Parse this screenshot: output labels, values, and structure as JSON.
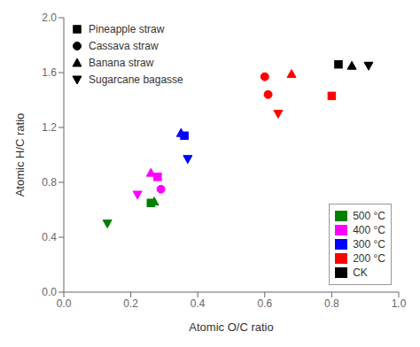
{
  "chart_data": {
    "type": "scatter",
    "xlabel": "Atomic O/C ratio",
    "ylabel": "Atomic H/C ratio",
    "xlim": [
      0.0,
      1.0
    ],
    "ylim": [
      0.0,
      2.0
    ],
    "xticks": [
      {
        "value": 0,
        "label": "0.0"
      },
      0.2,
      0.4,
      0.6,
      0.8,
      {
        "value": 1,
        "label": "1.0"
      }
    ],
    "yticks": [
      {
        "value": 0,
        "label": "0.0"
      },
      0.4,
      0.8,
      1.2,
      1.6,
      {
        "value": 2,
        "label": "2.0"
      }
    ],
    "grid": false,
    "legend": "upper left",
    "series": [
      {
        "name": "Pineapple straw",
        "marker": "square",
        "x": [
          0.82,
          0.8,
          0.36,
          0.28,
          0.26
        ],
        "y": [
          1.66,
          1.43,
          1.14,
          0.84,
          0.65
        ],
        "colors": [
          "#000000",
          "#ff0000",
          "#0000ff",
          "#ff00ff",
          "#008000"
        ]
      },
      {
        "name": "Cassava straw",
        "marker": "circle",
        "x": [
          0.61,
          0.6,
          0.29
        ],
        "y": [
          1.44,
          1.57,
          0.75
        ],
        "colors": [
          "#ff0000",
          "#ff0000",
          "#ff00ff"
        ]
      },
      {
        "name": "Banana straw",
        "marker": "triangle",
        "x": [
          0.86,
          0.68,
          0.35,
          0.26,
          0.27
        ],
        "y": [
          1.65,
          1.59,
          1.16,
          0.87,
          0.66
        ],
        "colors": [
          "#000000",
          "#ff0000",
          "#0000ff",
          "#ff00ff",
          "#008000"
        ]
      },
      {
        "name": "Sugarcane bagasse",
        "marker": "triangle-down",
        "x": [
          0.91,
          0.64,
          0.37,
          0.22,
          0.13
        ],
        "y": [
          1.65,
          1.3,
          0.97,
          0.71,
          0.5
        ],
        "colors": [
          "#000000",
          "#ff0000",
          "#0000ff",
          "#ff00ff",
          "#008000"
        ]
      }
    ],
    "color_legend": [
      {
        "name": "500 °C",
        "color": "#008000"
      },
      {
        "name": "400 °C",
        "color": "#ff00ff"
      },
      {
        "name": "300 °C",
        "color": "#0000ff"
      },
      {
        "name": "200 °C",
        "color": "#ff0000"
      },
      {
        "name": "CK",
        "color": "#000000"
      }
    ]
  }
}
